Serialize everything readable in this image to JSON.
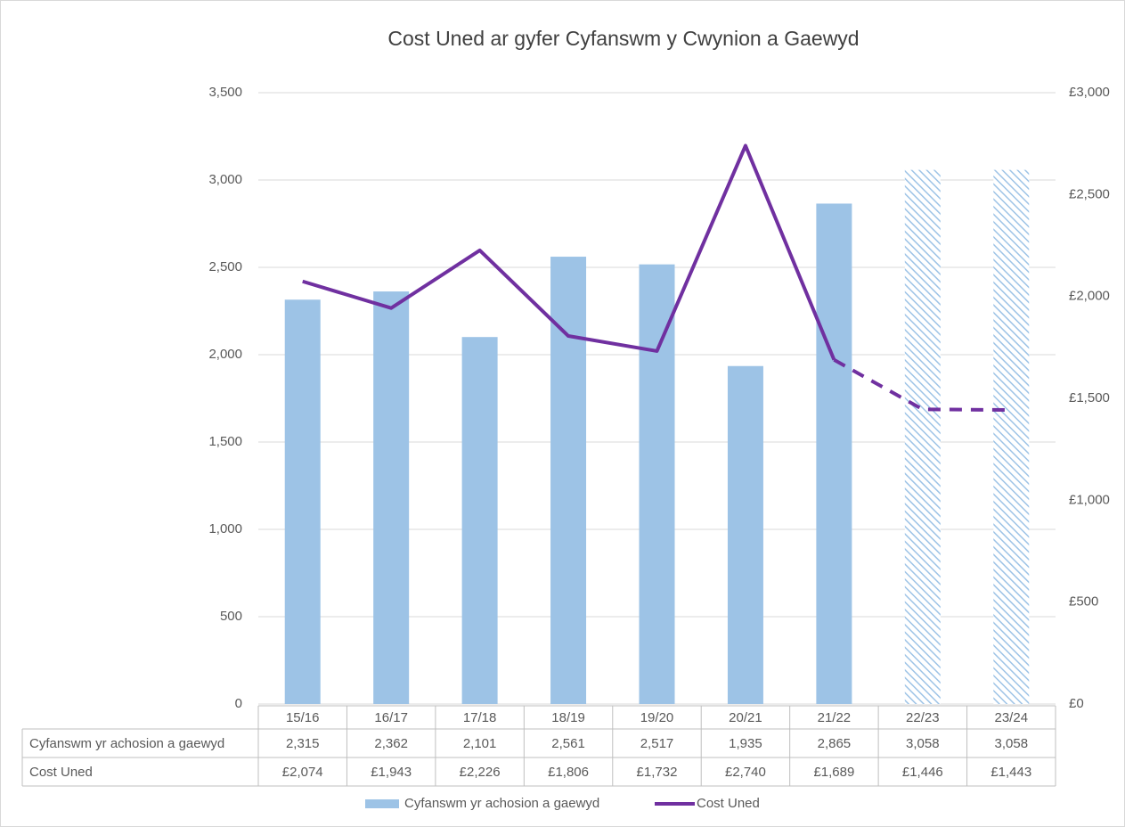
{
  "chart_data": {
    "type": "bar_line",
    "title": "Cost Uned ar gyfer Cyfanswm y Cwynion a Gaewyd",
    "categories": [
      "15/16",
      "16/17",
      "17/18",
      "18/19",
      "19/20",
      "20/21",
      "21/22",
      "22/23",
      "23/24"
    ],
    "series": [
      {
        "name": "Cyfanswm yr achosion a gaewyd",
        "type": "bar",
        "color": "#9dc3e6",
        "values": [
          2315,
          2362,
          2101,
          2561,
          2517,
          1935,
          2865,
          3058,
          3058
        ],
        "value_labels": [
          "2,315",
          "2,362",
          "2,101",
          "2,561",
          "2,517",
          "1,935",
          "2,865",
          "3,058",
          "3,058"
        ],
        "projected": [
          false,
          false,
          false,
          false,
          false,
          false,
          false,
          true,
          true
        ]
      },
      {
        "name": "Cost Uned",
        "type": "line",
        "axis": "y2",
        "color": "#7030a0",
        "values": [
          2074,
          1943,
          2226,
          1806,
          1732,
          2740,
          1689,
          1446,
          1443
        ],
        "value_labels": [
          "£2,074",
          "£1,943",
          "£2,226",
          "£1,806",
          "£1,732",
          "£2,740",
          "£1,689",
          "£1,446",
          "£1,443"
        ],
        "projected": [
          false,
          false,
          false,
          false,
          false,
          false,
          false,
          true,
          true
        ]
      }
    ],
    "ylim": [
      0,
      3500
    ],
    "yticks": [
      0,
      {
        "value": 500,
        "label": "500"
      },
      {
        "value": 1000,
        "label": "1,000"
      },
      {
        "value": 1500,
        "label": "1,500"
      },
      {
        "value": 2000,
        "label": "2,000"
      },
      {
        "value": 2500,
        "label": "2,500"
      },
      {
        "value": 3000,
        "label": "3,000"
      },
      {
        "value": 3500,
        "label": "3,500"
      }
    ],
    "y2lim": [
      0,
      3000
    ],
    "y2ticks": [
      {
        "value": 0,
        "label": "£0"
      },
      {
        "value": 500,
        "label": "£500"
      },
      {
        "value": 1000,
        "label": "£1,000"
      },
      {
        "value": 1500,
        "label": "£1,500"
      },
      {
        "value": 2000,
        "label": "£2,000"
      },
      {
        "value": 2500,
        "label": "£2,500"
      },
      {
        "value": 3000,
        "label": "£3,000"
      }
    ],
    "grid": true,
    "legend": "bottom"
  }
}
